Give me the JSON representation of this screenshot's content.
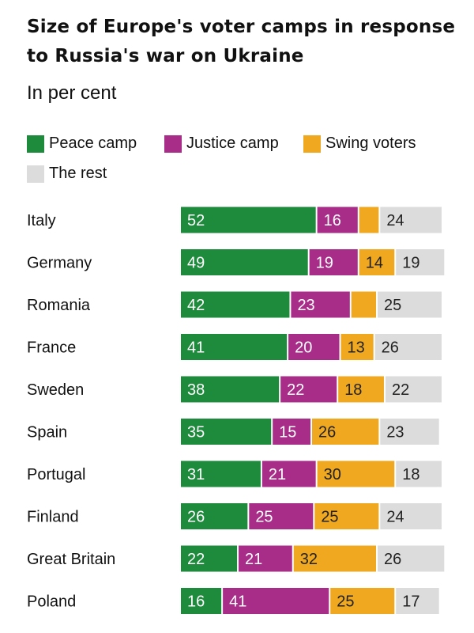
{
  "title": "Size of Europe's voter camps in response to Russia's war on Ukraine",
  "subtitle": "In per cent",
  "legend": [
    {
      "label": "Peace camp",
      "color": "#1e8a3c"
    },
    {
      "label": "Justice camp",
      "color": "#a82d89"
    },
    {
      "label": "Swing voters",
      "color": "#efa820"
    },
    {
      "label": "The rest",
      "color": "#dcdcdc"
    }
  ],
  "chart_data": {
    "type": "bar",
    "stacked": true,
    "orientation": "horizontal",
    "categories": [
      "Italy",
      "Germany",
      "Romania",
      "France",
      "Sweden",
      "Spain",
      "Portugal",
      "Finland",
      "Great Britain",
      "Poland"
    ],
    "series": [
      {
        "name": "Peace camp",
        "color": "#1e8a3c",
        "values": [
          52,
          49,
          42,
          41,
          38,
          35,
          31,
          26,
          22,
          16
        ]
      },
      {
        "name": "Justice camp",
        "color": "#a82d89",
        "values": [
          16,
          19,
          23,
          20,
          22,
          15,
          21,
          25,
          21,
          41
        ]
      },
      {
        "name": "Swing voters",
        "color": "#efa820",
        "values": [
          8,
          14,
          10,
          13,
          18,
          26,
          30,
          25,
          32,
          25
        ]
      },
      {
        "name": "The rest",
        "color": "#dcdcdc",
        "values": [
          24,
          19,
          25,
          26,
          22,
          23,
          18,
          24,
          26,
          17
        ]
      }
    ],
    "data_labels": [
      [
        "52",
        "16",
        "",
        "24"
      ],
      [
        "49",
        "19",
        "14",
        "19"
      ],
      [
        "42",
        "23",
        "",
        "25"
      ],
      [
        "41",
        "20",
        "13",
        "26"
      ],
      [
        "38",
        "22",
        "18",
        "22"
      ],
      [
        "35",
        "15",
        "26",
        "23"
      ],
      [
        "31",
        "21",
        "30",
        "18"
      ],
      [
        "26",
        "25",
        "25",
        "24"
      ],
      [
        "22",
        "21",
        "32",
        "26"
      ],
      [
        "16",
        "41",
        "25",
        "17"
      ]
    ],
    "xlim": [
      0,
      100
    ],
    "grid": false
  }
}
